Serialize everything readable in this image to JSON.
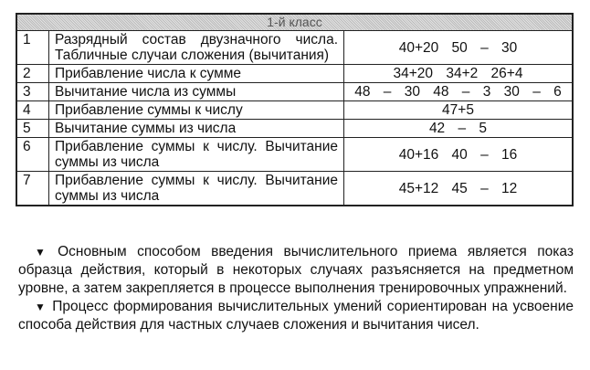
{
  "table": {
    "header": "1-й класс",
    "rows": [
      {
        "num": "1",
        "desc": "Разрядный состав двузначного числа. Табличные случаи сложения (вычитания)",
        "examples": "40+20 50 – 30"
      },
      {
        "num": "2",
        "desc": "Прибавление числа к сумме",
        "examples": "34+20 34+2 26+4"
      },
      {
        "num": "3",
        "desc": "Вычитание числа из суммы",
        "examples": "48 – 30 48 – 3 30 – 6"
      },
      {
        "num": "4",
        "desc": "Прибавление суммы к числу",
        "examples": "47+5"
      },
      {
        "num": "5",
        "desc": "Вычитание суммы из числа",
        "examples": "42 – 5"
      },
      {
        "num": "6",
        "desc": "Прибавление суммы к числу. Вычитание суммы из числа",
        "examples": "40+16 40 – 16"
      },
      {
        "num": "7",
        "desc": "Прибавление суммы к числу. Вычитание суммы из числа",
        "examples": "45+12 45 – 12"
      }
    ]
  },
  "paragraphs": [
    {
      "bullet": "triangle-down-icon",
      "text": "Основным способом введения вычислительного приема является показ образца действия, который в некоторых случаях разъясняется на предметном уровне, а затем закрепляется в процессе выполнения тренировочных упражнений."
    },
    {
      "bullet": "triangle-down-icon",
      "text": "Процесс формирования вычислительных умений сориентирован на усвоение способа действия для частных случаев сложения и вычитания чисел."
    }
  ]
}
